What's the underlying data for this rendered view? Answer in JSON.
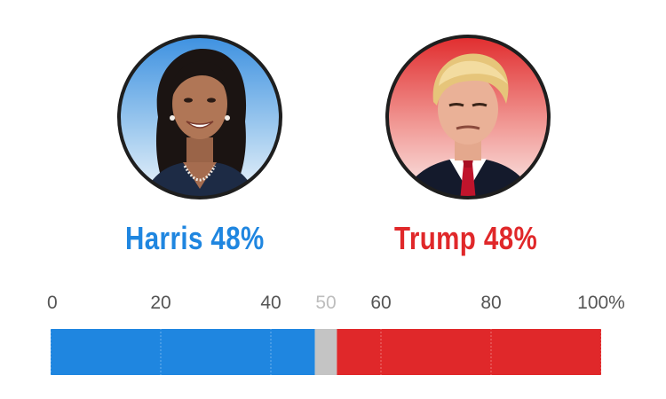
{
  "colors": {
    "harris": "#1f86e0",
    "trump": "#e0282a",
    "undecided": "#c4c4c4",
    "tick_text": "#555555",
    "midpoint_text": "#bdbdbd",
    "portrait_border": "#1e1e1e"
  },
  "candidates": [
    {
      "name": "Harris",
      "percent_label": "48%",
      "portrait": "harris-portrait"
    },
    {
      "name": "Trump",
      "percent_label": "48%",
      "portrait": "trump-portrait"
    }
  ],
  "labels": {
    "harris": "Harris 48%",
    "trump": "Trump 48%"
  },
  "chart_data": {
    "type": "bar",
    "orientation": "horizontal-stacked",
    "xlim": [
      0,
      100
    ],
    "ticks": [
      "0",
      "20",
      "40",
      "50",
      "60",
      "80",
      "100%"
    ],
    "tick_values": [
      0,
      20,
      40,
      50,
      60,
      80,
      100
    ],
    "midpoint_tick": 50,
    "series": [
      {
        "name": "Harris",
        "value": 48,
        "color": "#1f86e0"
      },
      {
        "name": "",
        "value": 4,
        "color": "#c4c4c4"
      },
      {
        "name": "Trump",
        "value": 48,
        "color": "#e0282a"
      }
    ],
    "gridlines": true
  }
}
